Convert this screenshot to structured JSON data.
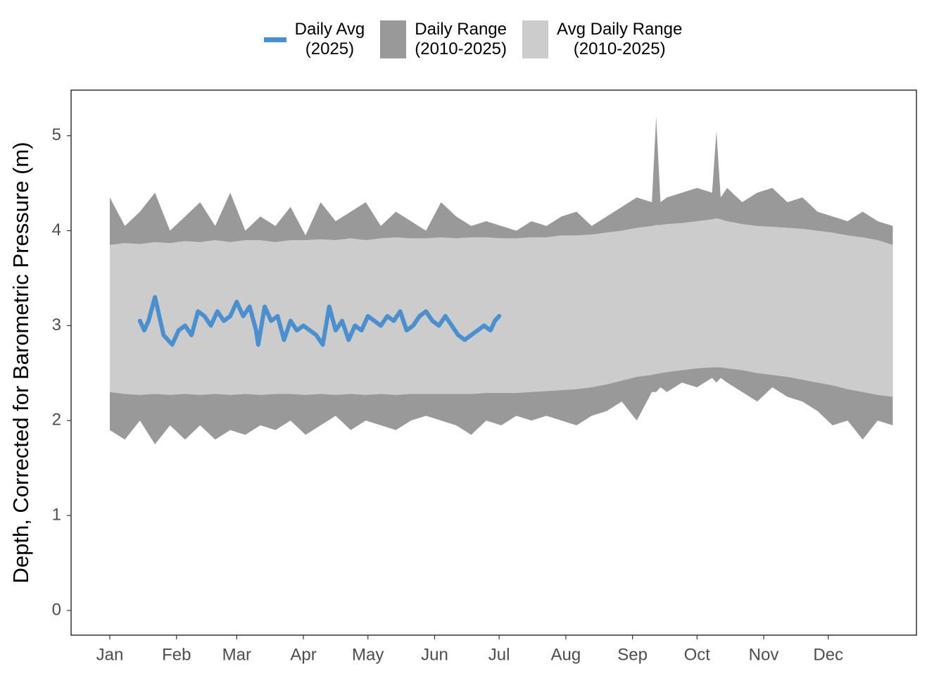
{
  "chart_data": {
    "type": "line",
    "ylabel": "Depth, Corrected for Barometric Pressure (m)",
    "xlim": [
      -17,
      376
    ],
    "ylim": [
      -0.26,
      5.48
    ],
    "yticks": [
      0,
      1,
      2,
      3,
      4,
      5
    ],
    "xticks": [
      {
        "value": 1,
        "label": "Jan"
      },
      {
        "value": 32,
        "label": "Feb"
      },
      {
        "value": 60,
        "label": "Mar"
      },
      {
        "value": 91,
        "label": "Apr"
      },
      {
        "value": 121,
        "label": "May"
      },
      {
        "value": 152,
        "label": "Jun"
      },
      {
        "value": 182,
        "label": "Jul"
      },
      {
        "value": 213,
        "label": "Aug"
      },
      {
        "value": 244,
        "label": "Sep"
      },
      {
        "value": 274,
        "label": "Oct"
      },
      {
        "value": 305,
        "label": "Nov"
      },
      {
        "value": 335,
        "label": "Dec"
      }
    ],
    "legend": "top",
    "x": [
      1,
      8,
      15,
      22,
      29,
      36,
      43,
      50,
      57,
      64,
      71,
      78,
      85,
      92,
      99,
      106,
      113,
      120,
      127,
      134,
      141,
      148,
      155,
      162,
      169,
      176,
      183,
      190,
      197,
      204,
      211,
      218,
      225,
      232,
      239,
      246,
      253,
      255,
      257,
      260,
      267,
      274,
      281,
      283,
      285,
      288,
      295,
      302,
      309,
      316,
      323,
      330,
      337,
      344,
      351,
      358,
      365
    ],
    "series": [
      {
        "name": "Daily Avg\n(2025)",
        "color": "#4b8fce",
        "x": [
          15,
          17,
          19,
          22,
          24,
          26,
          28,
          30,
          33,
          36,
          39,
          42,
          45,
          48,
          51,
          54,
          57,
          60,
          63,
          66,
          69,
          70,
          73,
          76,
          79,
          82,
          85,
          88,
          91,
          94,
          97,
          100,
          103,
          106,
          109,
          112,
          115,
          118,
          121,
          124,
          127,
          130,
          133,
          136,
          139,
          142,
          145,
          148,
          151,
          154,
          157,
          160,
          163,
          166,
          169,
          172,
          175,
          178,
          180,
          182
        ],
        "values": [
          3.05,
          2.95,
          3.05,
          3.3,
          3.1,
          2.9,
          2.85,
          2.8,
          2.95,
          3.0,
          2.9,
          3.15,
          3.1,
          3.0,
          3.15,
          3.05,
          3.1,
          3.25,
          3.1,
          3.2,
          2.95,
          2.8,
          3.2,
          3.05,
          3.1,
          2.85,
          3.05,
          2.95,
          3.0,
          2.95,
          2.9,
          2.8,
          3.2,
          2.95,
          3.05,
          2.85,
          3.0,
          2.95,
          3.1,
          3.05,
          3.0,
          3.1,
          3.05,
          3.15,
          2.95,
          3.0,
          3.1,
          3.15,
          3.05,
          3.0,
          3.1,
          3.0,
          2.9,
          2.85,
          2.9,
          2.95,
          3.0,
          2.95,
          3.05,
          3.1
        ]
      }
    ],
    "bands": [
      {
        "name": "Daily Range\n(2010-2025)",
        "color": "#999999",
        "lower": [
          1.9,
          1.8,
          2.0,
          1.75,
          1.95,
          1.8,
          1.95,
          1.8,
          1.9,
          1.85,
          1.95,
          1.9,
          2.0,
          1.85,
          1.95,
          2.05,
          1.9,
          2.0,
          1.95,
          1.9,
          2.0,
          2.05,
          2.0,
          1.95,
          1.85,
          2.0,
          1.95,
          2.05,
          2.0,
          2.05,
          2.0,
          1.95,
          2.05,
          2.1,
          2.2,
          2.0,
          2.3,
          2.3,
          2.35,
          2.3,
          2.4,
          2.35,
          2.45,
          2.4,
          2.45,
          2.4,
          2.3,
          2.2,
          2.35,
          2.25,
          2.2,
          2.1,
          1.95,
          2.0,
          1.8,
          2.0,
          1.95
        ],
        "upper": [
          4.35,
          4.05,
          4.2,
          4.4,
          4.0,
          4.15,
          4.3,
          4.05,
          4.4,
          4.0,
          4.15,
          4.05,
          4.25,
          3.95,
          4.3,
          4.1,
          4.2,
          4.3,
          4.05,
          4.2,
          4.1,
          4.0,
          4.3,
          4.15,
          4.05,
          4.1,
          4.05,
          4.0,
          4.1,
          4.05,
          4.15,
          4.2,
          4.05,
          4.15,
          4.25,
          4.35,
          4.3,
          5.2,
          4.3,
          4.35,
          4.4,
          4.45,
          4.4,
          5.05,
          4.35,
          4.45,
          4.3,
          4.4,
          4.45,
          4.3,
          4.35,
          4.2,
          4.15,
          4.1,
          4.2,
          4.1,
          4.05
        ]
      },
      {
        "name": "Avg Daily Range\n(2010-2025)",
        "color": "#cccccc",
        "lower": [
          2.3,
          2.28,
          2.27,
          2.28,
          2.27,
          2.28,
          2.27,
          2.28,
          2.27,
          2.28,
          2.27,
          2.28,
          2.28,
          2.27,
          2.28,
          2.27,
          2.28,
          2.27,
          2.28,
          2.27,
          2.28,
          2.28,
          2.28,
          2.28,
          2.28,
          2.29,
          2.29,
          2.29,
          2.3,
          2.31,
          2.32,
          2.33,
          2.35,
          2.38,
          2.42,
          2.46,
          2.48,
          2.49,
          2.5,
          2.51,
          2.53,
          2.55,
          2.56,
          2.56,
          2.56,
          2.55,
          2.53,
          2.5,
          2.48,
          2.46,
          2.43,
          2.4,
          2.37,
          2.33,
          2.3,
          2.27,
          2.25
        ],
        "upper": [
          3.85,
          3.87,
          3.86,
          3.88,
          3.87,
          3.89,
          3.88,
          3.9,
          3.88,
          3.9,
          3.9,
          3.88,
          3.9,
          3.9,
          3.91,
          3.9,
          3.92,
          3.9,
          3.92,
          3.93,
          3.92,
          3.92,
          3.93,
          3.92,
          3.93,
          3.93,
          3.92,
          3.92,
          3.93,
          3.93,
          3.95,
          3.95,
          3.96,
          3.98,
          4.0,
          4.03,
          4.05,
          4.06,
          4.06,
          4.07,
          4.08,
          4.1,
          4.12,
          4.13,
          4.12,
          4.1,
          4.07,
          4.05,
          4.04,
          4.03,
          4.02,
          4.0,
          3.98,
          3.95,
          3.93,
          3.9,
          3.85
        ]
      }
    ]
  }
}
